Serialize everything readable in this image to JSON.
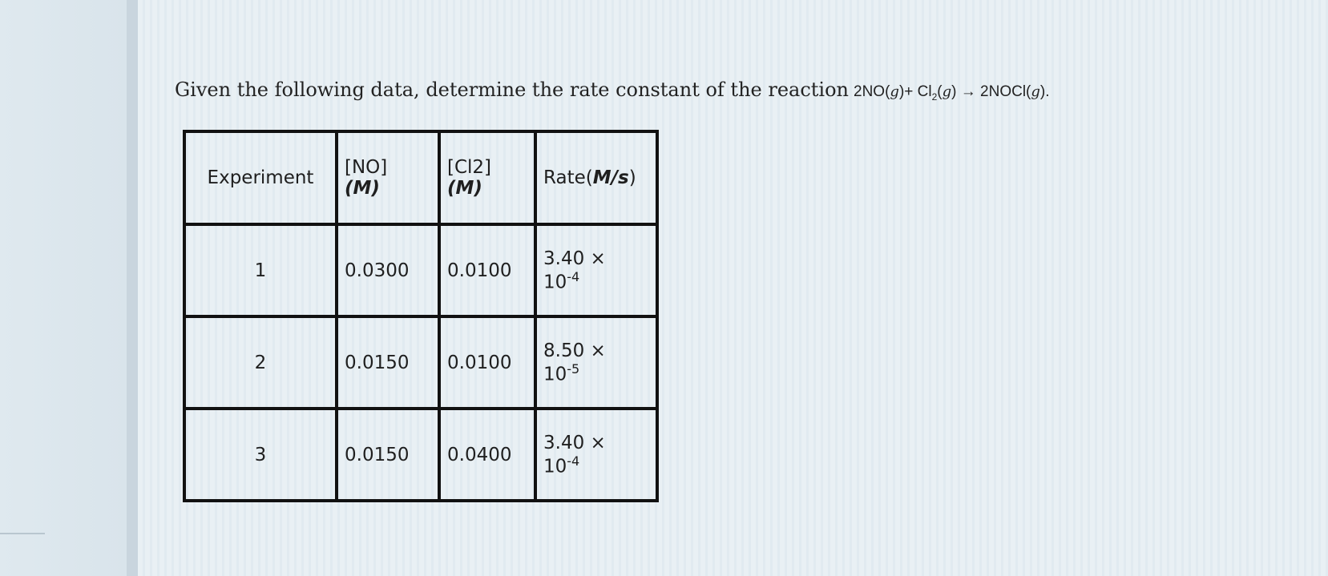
{
  "question": {
    "text": "Given the following data, determine the rate constant of the reaction",
    "formula": {
      "lead": "2NO(",
      "g1": "g",
      "mid": ")+ Cl",
      "sub": "2",
      "mid2": "(",
      "g2": "g",
      "mid3": ") → 2NOCl(",
      "g3": "g",
      "end": ")."
    }
  },
  "table": {
    "headers": {
      "experiment": "Experiment",
      "no_line1": "[NO]",
      "no_line2": "(M)",
      "cl_line1": "[Cl2]",
      "cl_line2": "(M)",
      "rate_prefix": "Rate(",
      "rate_unit": "M/s",
      "rate_suffix": ")"
    },
    "rows": [
      {
        "experiment": "1",
        "no": "0.0300",
        "cl2": "0.0100",
        "rate_mantissa": "3.40 ×",
        "rate_base": "10",
        "rate_exp": "-4"
      },
      {
        "experiment": "2",
        "no": "0.0150",
        "cl2": "0.0100",
        "rate_mantissa": "8.50 ×",
        "rate_base": "10",
        "rate_exp": "-5"
      },
      {
        "experiment": "3",
        "no": "0.0150",
        "cl2": "0.0400",
        "rate_mantissa": "3.40 ×",
        "rate_base": "10",
        "rate_exp": "-4"
      }
    ]
  }
}
